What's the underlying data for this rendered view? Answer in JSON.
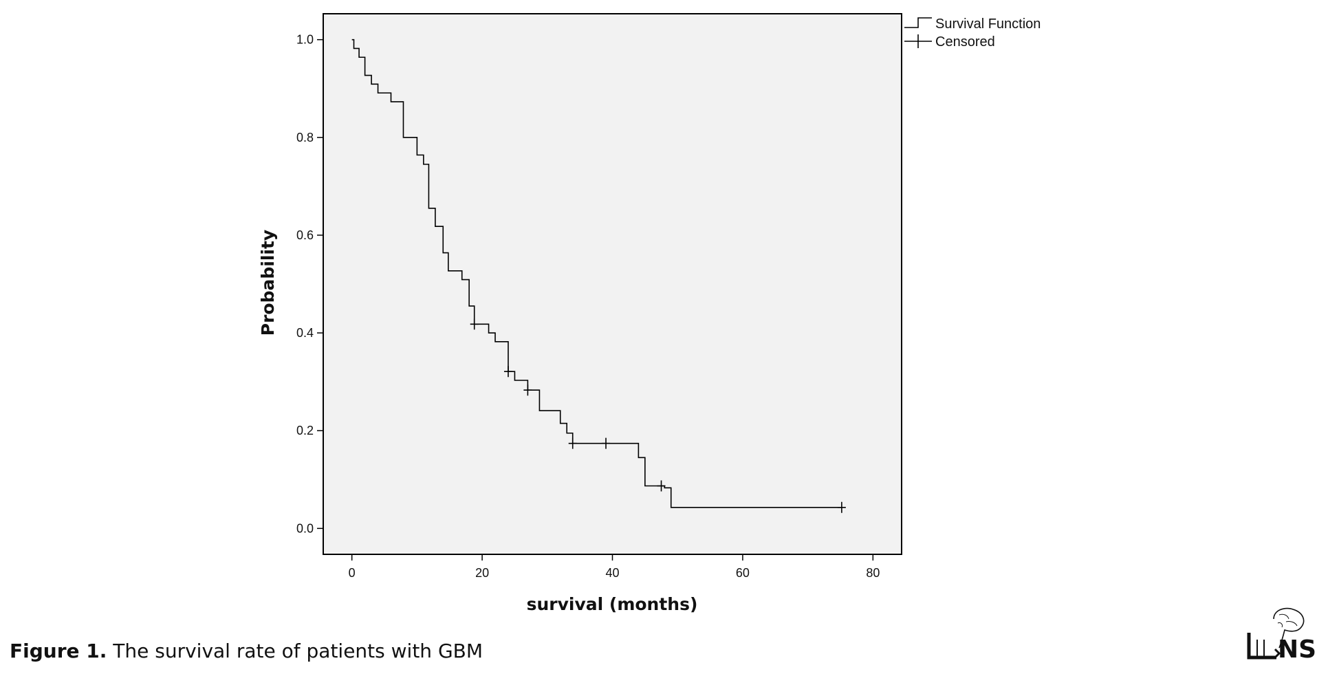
{
  "chart_data": {
    "type": "line",
    "subtype": "kaplan-meier step",
    "xlabel": "survival (months)",
    "ylabel": "Probability",
    "xlim": [
      -4.4,
      84.4
    ],
    "ylim": [
      -0.053,
      1.053
    ],
    "xticks": [
      0,
      20,
      40,
      60,
      80
    ],
    "yticks": [
      0.0,
      0.2,
      0.4,
      0.6,
      0.8,
      1.0
    ],
    "ytick_labels": [
      "0.0",
      "0.2",
      "0.4",
      "0.6",
      "0.8",
      "1.0"
    ],
    "grid": false,
    "background": "#f2f2f2",
    "legend": {
      "placement": "outside-top-right",
      "entries": [
        "Survival Function",
        "Censored"
      ]
    },
    "series": [
      {
        "name": "Survival Function",
        "steps": [
          {
            "t": 0,
            "s": 1.0
          },
          {
            "t": 0.3,
            "s": 0.982
          },
          {
            "t": 1.1,
            "s": 0.964
          },
          {
            "t": 2.0,
            "s": 0.927
          },
          {
            "t": 3.0,
            "s": 0.909
          },
          {
            "t": 4.0,
            "s": 0.891
          },
          {
            "t": 6.0,
            "s": 0.873
          },
          {
            "t": 7.9,
            "s": 0.8
          },
          {
            "t": 10.0,
            "s": 0.764
          },
          {
            "t": 11.0,
            "s": 0.745
          },
          {
            "t": 11.8,
            "s": 0.655
          },
          {
            "t": 12.8,
            "s": 0.618
          },
          {
            "t": 14.0,
            "s": 0.564
          },
          {
            "t": 14.8,
            "s": 0.527
          },
          {
            "t": 16.9,
            "s": 0.509
          },
          {
            "t": 18.0,
            "s": 0.455
          },
          {
            "t": 18.8,
            "s": 0.418
          },
          {
            "t": 21.0,
            "s": 0.4
          },
          {
            "t": 22.0,
            "s": 0.382
          },
          {
            "t": 24.0,
            "s": 0.321
          },
          {
            "t": 25.0,
            "s": 0.303
          },
          {
            "t": 27.0,
            "s": 0.283
          },
          {
            "t": 28.8,
            "s": 0.241
          },
          {
            "t": 32.0,
            "s": 0.215
          },
          {
            "t": 33.0,
            "s": 0.195
          },
          {
            "t": 33.9,
            "s": 0.174
          },
          {
            "t": 44.0,
            "s": 0.145
          },
          {
            "t": 45.0,
            "s": 0.087
          },
          {
            "t": 48.0,
            "s": 0.083
          },
          {
            "t": 49.0,
            "s": 0.043
          }
        ],
        "end_t": 75.2
      },
      {
        "name": "Censored",
        "points": [
          {
            "t": 18.8,
            "s": 0.418
          },
          {
            "t": 24.0,
            "s": 0.321
          },
          {
            "t": 27.0,
            "s": 0.283
          },
          {
            "t": 33.9,
            "s": 0.174
          },
          {
            "t": 39.0,
            "s": 0.174
          },
          {
            "t": 47.5,
            "s": 0.087
          },
          {
            "t": 75.2,
            "s": 0.043
          }
        ]
      }
    ]
  },
  "caption": {
    "label": "Figure 1.",
    "text": " The survival rate of patients with GBM"
  },
  "logo": {
    "name": "IJNS-logo",
    "text": "NS"
  }
}
